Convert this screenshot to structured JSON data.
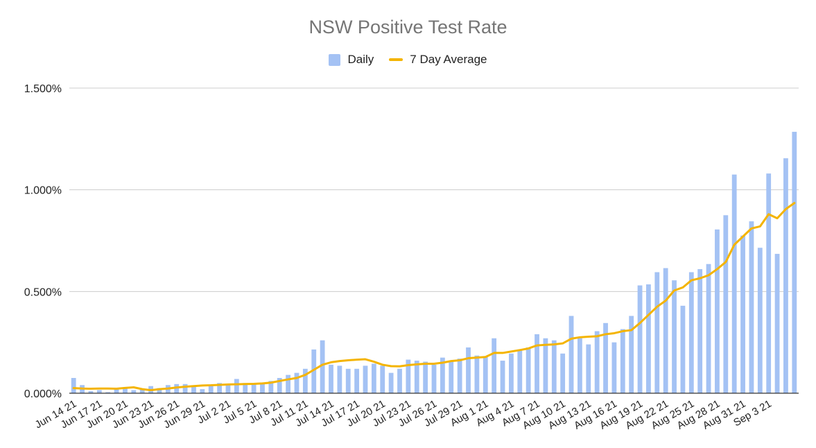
{
  "chart_data": {
    "type": "bar",
    "title": "NSW Positive Test Rate",
    "xlabel": "",
    "ylabel": "",
    "ylim": [
      0,
      1.5
    ],
    "yticks": [
      0,
      0.5,
      1.0,
      1.5
    ],
    "ytick_labels": [
      "0.000%",
      "0.500%",
      "1.000%",
      "1.500%"
    ],
    "grid": true,
    "legend_position": "top-center",
    "x_tick_labels": [
      "Jun 14 21",
      "Jun 17 21",
      "Jun 20 21",
      "Jun 23 21",
      "Jun 26 21",
      "Jun 29 21",
      "Jul 2 21",
      "Jul 5 21",
      "Jul 8 21",
      "Jul 11 21",
      "Jul 14 21",
      "Jul 17 21",
      "Jul 20 21",
      "Jul 23 21",
      "Jul 26 21",
      "Jul 29 21",
      "Aug 1 21",
      "Aug 4 21",
      "Aug 7 21",
      "Aug 10 21",
      "Aug 13 21",
      "Aug 16 21",
      "Aug 19 21",
      "Aug 22 21",
      "Aug 25 21",
      "Aug 28 21",
      "Aug 31 21",
      "Sep 3 21"
    ],
    "x_tick_every": 3,
    "series": [
      {
        "name": "Daily",
        "type": "bar",
        "color": "#a4c2f4",
        "values": [
          0.075,
          0.04,
          0.01,
          0.015,
          0.005,
          0.02,
          0.025,
          0.015,
          0.02,
          0.035,
          0.025,
          0.04,
          0.045,
          0.045,
          0.035,
          0.02,
          0.04,
          0.05,
          0.045,
          0.07,
          0.05,
          0.045,
          0.05,
          0.06,
          0.075,
          0.09,
          0.1,
          0.12,
          0.215,
          0.26,
          0.14,
          0.135,
          0.12,
          0.12,
          0.135,
          0.145,
          0.135,
          0.1,
          0.12,
          0.165,
          0.16,
          0.155,
          0.14,
          0.175,
          0.16,
          0.17,
          0.225,
          0.185,
          0.18,
          0.27,
          0.16,
          0.195,
          0.215,
          0.225,
          0.29,
          0.27,
          0.26,
          0.195,
          0.38,
          0.27,
          0.24,
          0.305,
          0.345,
          0.25,
          0.315,
          0.38,
          0.53,
          0.535,
          0.595,
          0.615,
          0.555,
          0.43,
          0.595,
          0.61,
          0.635,
          0.805,
          0.875,
          1.075,
          0.775,
          0.845,
          0.715,
          1.08,
          0.685,
          1.155,
          1.285
        ]
      },
      {
        "name": "7 Day Average",
        "type": "line",
        "color": "#f4b400",
        "values": [
          0.025,
          0.023,
          0.022,
          0.023,
          0.023,
          0.022,
          0.026,
          0.029,
          0.02,
          0.015,
          0.02,
          0.023,
          0.028,
          0.032,
          0.035,
          0.038,
          0.039,
          0.041,
          0.043,
          0.044,
          0.045,
          0.046,
          0.048,
          0.052,
          0.06,
          0.068,
          0.075,
          0.09,
          0.115,
          0.14,
          0.152,
          0.158,
          0.162,
          0.165,
          0.167,
          0.155,
          0.14,
          0.133,
          0.132,
          0.138,
          0.142,
          0.145,
          0.145,
          0.15,
          0.158,
          0.162,
          0.172,
          0.175,
          0.178,
          0.198,
          0.198,
          0.205,
          0.212,
          0.22,
          0.235,
          0.238,
          0.24,
          0.245,
          0.268,
          0.275,
          0.278,
          0.28,
          0.29,
          0.295,
          0.305,
          0.31,
          0.345,
          0.385,
          0.425,
          0.455,
          0.505,
          0.52,
          0.555,
          0.565,
          0.58,
          0.61,
          0.645,
          0.73,
          0.77,
          0.81,
          0.82,
          0.88,
          0.86,
          0.905,
          0.935
        ]
      }
    ]
  }
}
